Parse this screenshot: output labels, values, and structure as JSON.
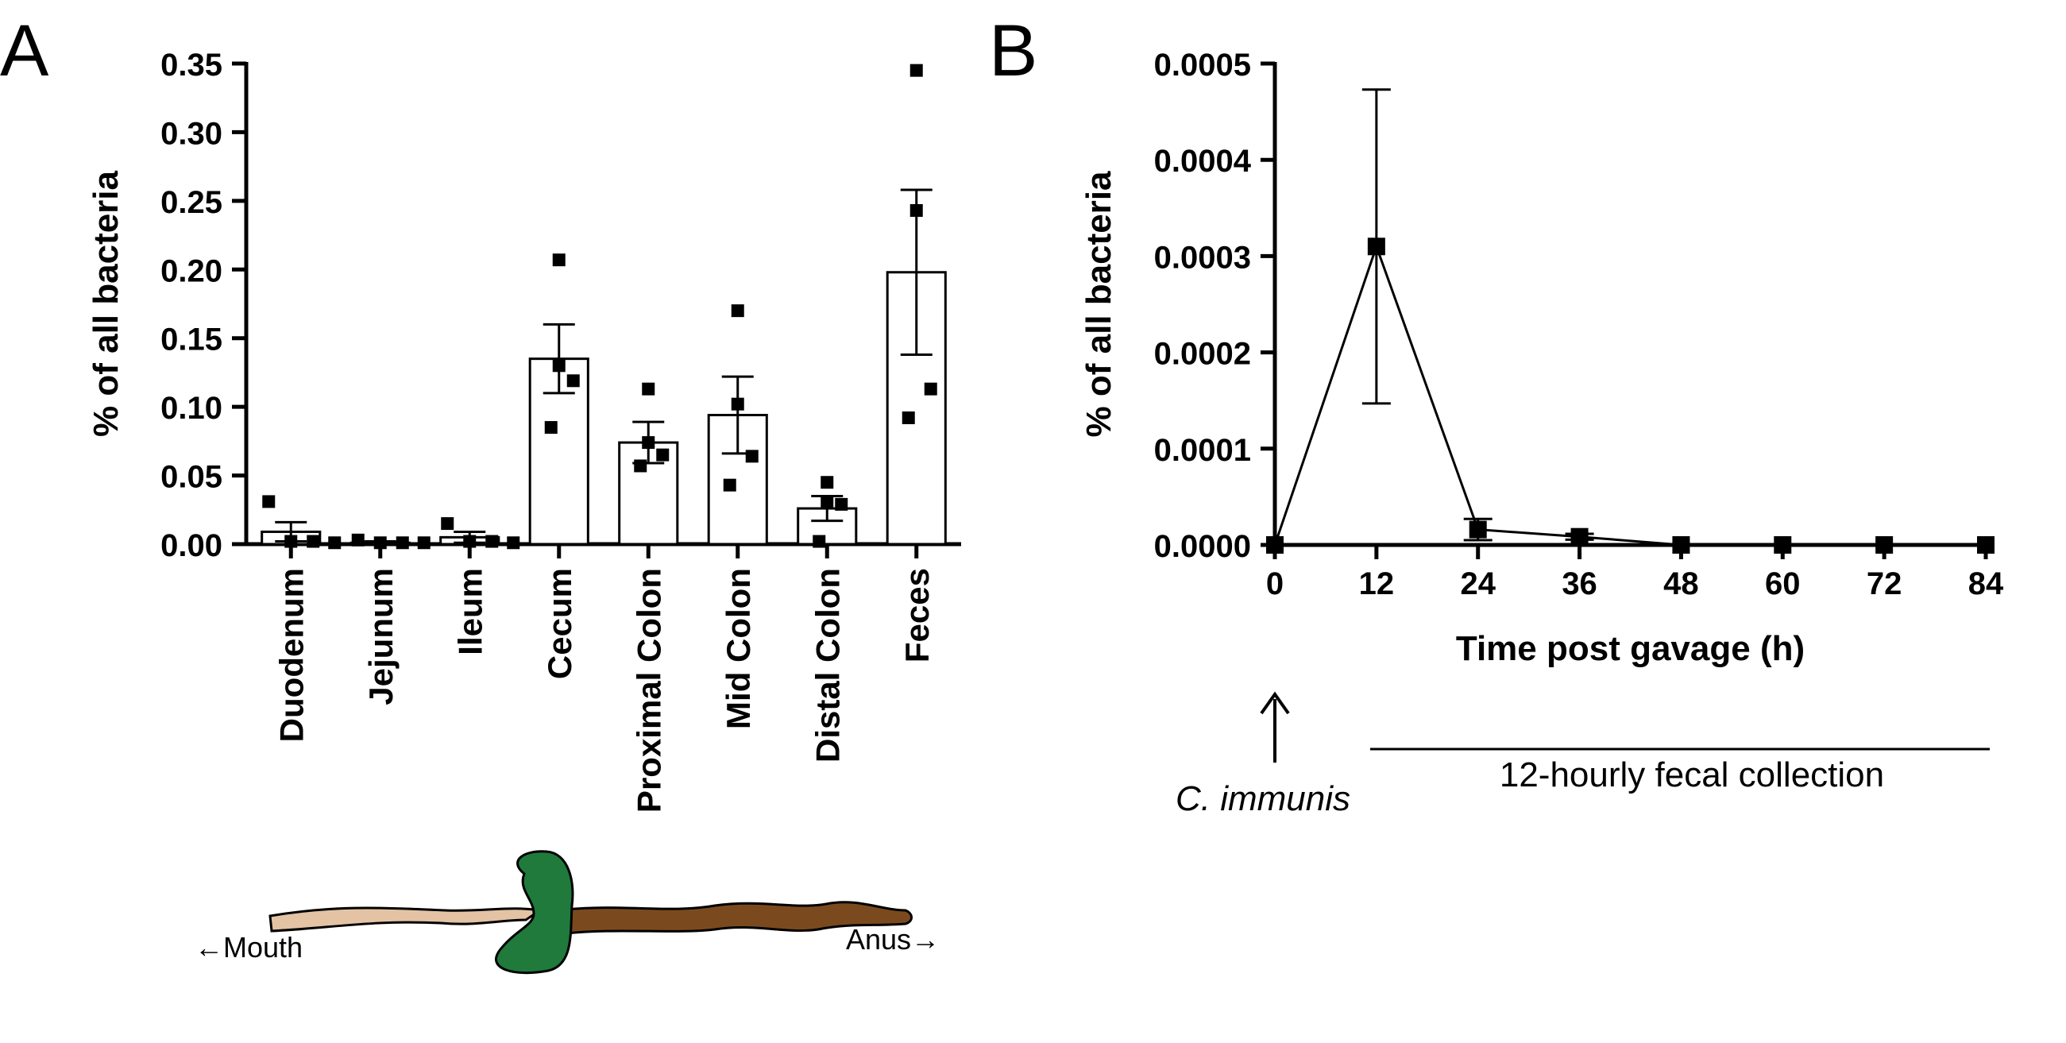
{
  "chart_data": [
    {
      "panel": "A",
      "type": "bar",
      "ylabel": "% of all bacteria",
      "ylim": [
        0,
        0.35
      ],
      "yticks": [
        "0.00",
        "0.05",
        "0.10",
        "0.15",
        "0.20",
        "0.25",
        "0.30",
        "0.35"
      ],
      "categories": [
        "Duodenum",
        "Jejunum",
        "Ileum",
        "Cecum",
        "Proximal Colon",
        "Mid Colon",
        "Distal Colon",
        "Feces"
      ],
      "values": [
        0.009,
        0.001,
        0.005,
        0.135,
        0.074,
        0.094,
        0.026,
        0.198
      ],
      "error": [
        0.007,
        0.001,
        0.004,
        0.025,
        0.015,
        0.028,
        0.009,
        0.06
      ],
      "points": [
        [
          0.031,
          0.002,
          0.002,
          0.001
        ],
        [
          0.003,
          0.001,
          0.001,
          0.001
        ],
        [
          0.015,
          0.002,
          0.002,
          0.001
        ],
        [
          0.207,
          0.13,
          0.119,
          0.085
        ],
        [
          0.113,
          0.074,
          0.065,
          0.057
        ],
        [
          0.17,
          0.102,
          0.064,
          0.043
        ],
        [
          0.045,
          0.03,
          0.029,
          0.002
        ],
        [
          0.345,
          0.243,
          0.113,
          0.092
        ]
      ],
      "gut_labels": {
        "mouth": "←Mouth",
        "anus": "Anus→"
      }
    },
    {
      "panel": "B",
      "type": "line",
      "xlabel": "Time post gavage (h)",
      "ylabel": "% of all bacteria",
      "ylim": [
        0,
        0.0005
      ],
      "yticks": [
        "0.0000",
        "0.0001",
        "0.0002",
        "0.0003",
        "0.0004",
        "0.0005"
      ],
      "xlim": [
        0,
        84
      ],
      "x": [
        0,
        12,
        24,
        36,
        48,
        60,
        72,
        84
      ],
      "y": [
        0,
        0.00031,
        1.6e-05,
        8.5e-06,
        0,
        0,
        0,
        0
      ],
      "error": [
        0,
        0.000163,
        1.1e-05,
        3e-06,
        0,
        0,
        0,
        0
      ],
      "annotations": {
        "arrow_label": "C. immunis",
        "collection_label": "12-hourly fecal collection"
      }
    }
  ],
  "colors": {
    "ink": "#000000",
    "small_intestine": "#e3c3a4",
    "cecum": "#1f7a3c",
    "colon": "#7a4a1e"
  }
}
